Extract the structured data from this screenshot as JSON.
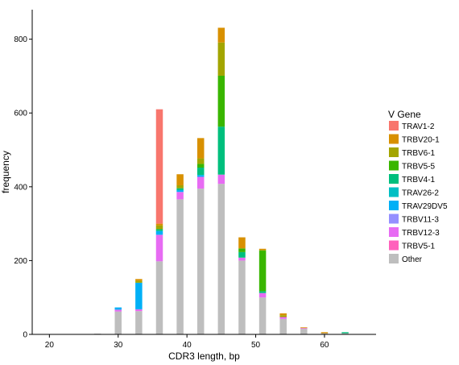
{
  "chart_data": {
    "type": "bar",
    "stacked": true,
    "xlabel": "CDR3 length, bp",
    "ylabel": "frequency",
    "xlim": [
      17.5,
      67.5
    ],
    "ylim": [
      0,
      880
    ],
    "x_ticks": [
      20,
      30,
      40,
      50,
      60
    ],
    "y_ticks": [
      0,
      200,
      400,
      600,
      800
    ],
    "x_tick_labels": [
      "20",
      "30",
      "40",
      "50",
      "60"
    ],
    "y_tick_labels": [
      "0",
      "200",
      "400",
      "600",
      "800"
    ],
    "grid": false,
    "legend": {
      "title": "V Gene",
      "placement": "right"
    },
    "x": [
      21,
      24,
      27,
      30,
      33,
      36,
      39,
      42,
      45,
      48,
      51,
      54,
      57,
      60,
      63,
      66
    ],
    "series": [
      {
        "name": "Other",
        "color": "#BEBEBE",
        "values": [
          1,
          1,
          2,
          62,
          63,
          198,
          366,
          395,
          408,
          200,
          100,
          42,
          15,
          3,
          3,
          1
        ]
      },
      {
        "name": "TRBV5-1",
        "color": "#FF61C3",
        "values": [
          0,
          0,
          0,
          0,
          0,
          0,
          0,
          0,
          0,
          0,
          0,
          0,
          0,
          0,
          0,
          0
        ]
      },
      {
        "name": "TRBV12-3",
        "color": "#DB72FB",
        "values": [
          0,
          0,
          0,
          5,
          5,
          72,
          20,
          32,
          25,
          8,
          12,
          5,
          2,
          0,
          0,
          0
        ]
      },
      {
        "name": "TRBV11-3",
        "color": "#93AA00",
        "values": [
          0,
          0,
          0,
          0,
          0,
          0,
          0,
          0,
          0,
          0,
          0,
          0,
          0,
          0,
          0,
          0
        ]
      },
      {
        "name": "TRAV29DV5",
        "color": "#00B9E3",
        "values": [
          0,
          0,
          0,
          6,
          72,
          10,
          5,
          5,
          0,
          0,
          0,
          0,
          0,
          0,
          0,
          0
        ]
      },
      {
        "name": "TRAV26-2",
        "color": "#00C19F",
        "values": [
          0,
          0,
          0,
          0,
          0,
          0,
          0,
          0,
          0,
          0,
          0,
          0,
          0,
          0,
          0,
          0
        ]
      },
      {
        "name": "TRBV4-1",
        "color": "#00BFC4",
        "values": [
          0,
          0,
          0,
          0,
          0,
          5,
          5,
          20,
          130,
          15,
          5,
          0,
          0,
          0,
          3,
          0
        ]
      },
      {
        "name": "TRBV5-5",
        "color": "#53B400",
        "values": [
          0,
          0,
          0,
          0,
          0,
          0,
          0,
          10,
          138,
          10,
          110,
          0,
          0,
          0,
          0,
          0
        ]
      },
      {
        "name": "TRBV6-1",
        "color": "#A3A500",
        "values": [
          0,
          0,
          0,
          0,
          5,
          10,
          8,
          15,
          90,
          0,
          2,
          5,
          0,
          0,
          0,
          0
        ]
      },
      {
        "name": "TRBV20-1",
        "color": "#D89000",
        "values": [
          0,
          0,
          0,
          0,
          5,
          5,
          30,
          55,
          40,
          30,
          3,
          5,
          2,
          3,
          0,
          0
        ]
      },
      {
        "name": "TRAV1-2",
        "color": "#F8766D",
        "values": [
          0,
          0,
          0,
          0,
          0,
          310,
          0,
          0,
          0,
          0,
          0,
          0,
          0,
          0,
          0,
          0
        ]
      }
    ],
    "legend_entries": [
      {
        "name": "TRAV1-2",
        "color": "#F8766D"
      },
      {
        "name": "TRBV20-1",
        "color": "#D89000"
      },
      {
        "name": "TRBV6-1",
        "color": "#A3A500"
      },
      {
        "name": "TRBV5-5",
        "color": "#39B600"
      },
      {
        "name": "TRBV4-1",
        "color": "#00BF7D"
      },
      {
        "name": "TRAV26-2",
        "color": "#00BFC4"
      },
      {
        "name": "TRAV29DV5",
        "color": "#00B0F6"
      },
      {
        "name": "TRBV11-3",
        "color": "#9590FF"
      },
      {
        "name": "TRBV12-3",
        "color": "#E76BF3"
      },
      {
        "name": "TRBV5-1",
        "color": "#FF62BC"
      },
      {
        "name": "Other",
        "color": "#BEBEBE"
      }
    ],
    "stack_colors": {
      "Other": "#BEBEBE",
      "TRBV5-1": "#FF62BC",
      "TRBV12-3": "#E76BF3",
      "TRBV11-3": "#9590FF",
      "TRAV29DV5": "#00B0F6",
      "TRAV26-2": "#00BFC4",
      "TRBV4-1": "#00BF7D",
      "TRBV5-5": "#39B600",
      "TRBV6-1": "#A3A500",
      "TRBV20-1": "#D89000",
      "TRAV1-2": "#F8766D"
    }
  }
}
